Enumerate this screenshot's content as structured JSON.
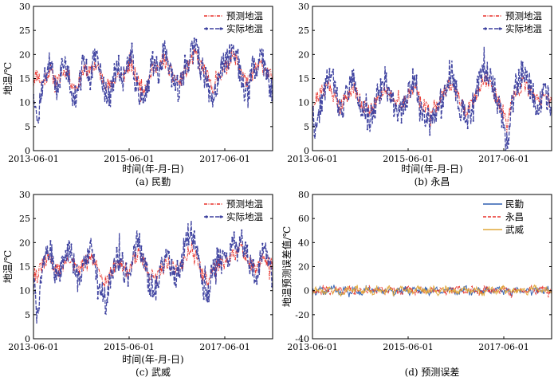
{
  "chart_data": [
    {
      "type": "line",
      "caption": "(a) 民勤",
      "xlabel": "时间(年-月-日)",
      "ylabel": "地温/℃",
      "xticks": [
        "2013-06-01",
        "2015-06-01",
        "2017-06-01"
      ],
      "x_range": [
        "2013-06-01",
        "2018-06-01"
      ],
      "yticks": [
        "0",
        "5",
        "10",
        "15",
        "20",
        "25",
        "30"
      ],
      "ylim": [
        0,
        30
      ],
      "legend_position": "top-right",
      "series": [
        {
          "name": "预测地温",
          "color": "#e8312a",
          "style": "dash-dot",
          "seed": 11,
          "values": [
            15,
            16,
            14,
            15,
            17,
            15,
            14,
            16,
            17,
            15,
            13,
            14,
            16,
            17,
            16,
            18,
            17,
            15,
            14,
            13,
            15,
            16,
            15,
            17,
            18,
            16,
            14,
            13,
            14,
            16,
            18,
            17,
            19,
            18,
            16,
            15,
            14,
            16,
            17,
            19,
            20,
            18,
            17,
            15,
            13,
            14,
            16,
            17,
            18,
            20,
            19,
            17,
            15,
            14,
            16,
            17,
            18,
            17,
            16,
            15
          ]
        },
        {
          "name": "实际地温",
          "color": "#3b3f9e",
          "style": "dash-marker",
          "seed": 12,
          "values": [
            14,
            5,
            13,
            16,
            19,
            14,
            13,
            17,
            18,
            14,
            11,
            12,
            17,
            18,
            15,
            19,
            18,
            14,
            12,
            11,
            16,
            17,
            14,
            18,
            22,
            15,
            12,
            11,
            13,
            17,
            19,
            16,
            21,
            19,
            15,
            14,
            12,
            17,
            18,
            20,
            22,
            18,
            16,
            13,
            11,
            13,
            17,
            18,
            19,
            22,
            20,
            16,
            13,
            12,
            17,
            18,
            21,
            17,
            15,
            12
          ]
        }
      ]
    },
    {
      "type": "line",
      "caption": "(b) 永昌",
      "xlabel": "时间(年-月-日)",
      "ylabel": "",
      "xticks": [
        "2013-06-01",
        "2015-06-01",
        "2017-06-01"
      ],
      "x_range": [
        "2013-06-01",
        "2018-06-01"
      ],
      "yticks": [
        "0",
        "5",
        "10",
        "15",
        "20",
        "25",
        "30"
      ],
      "ylim": [
        0,
        30
      ],
      "legend_position": "top-right",
      "series": [
        {
          "name": "预测地温",
          "color": "#e8312a",
          "style": "dash-dot",
          "seed": 21,
          "values": [
            9,
            11,
            12,
            13,
            14,
            12,
            10,
            9,
            11,
            12,
            13,
            12,
            10,
            9,
            8,
            9,
            11,
            12,
            13,
            12,
            11,
            10,
            9,
            11,
            12,
            13,
            12,
            10,
            9,
            8,
            9,
            10,
            11,
            13,
            14,
            13,
            11,
            9,
            8,
            9,
            11,
            13,
            14,
            15,
            14,
            12,
            10,
            8,
            5,
            9,
            12,
            13,
            14,
            13,
            12,
            11,
            10,
            12,
            11,
            10
          ]
        },
        {
          "name": "实际地温",
          "color": "#3b3f9e",
          "style": "dash-marker",
          "seed": 22,
          "values": [
            8,
            3,
            10,
            12,
            16,
            15,
            11,
            8,
            11,
            13,
            15,
            13,
            9,
            7,
            6,
            8,
            12,
            13,
            15,
            12,
            10,
            9,
            7,
            11,
            13,
            15,
            12,
            9,
            7,
            6,
            8,
            9,
            11,
            14,
            17,
            14,
            10,
            8,
            6,
            8,
            11,
            14,
            16,
            17,
            16,
            12,
            9,
            5,
            1,
            8,
            13,
            15,
            17,
            15,
            13,
            10,
            9,
            13,
            11,
            8
          ]
        }
      ]
    },
    {
      "type": "line",
      "caption": "(c) 武威",
      "xlabel": "时间(年-月-日)",
      "ylabel": "地温/℃",
      "xticks": [
        "2013-06-01",
        "2015-06-01",
        "2017-06-01"
      ],
      "x_range": [
        "2013-06-01",
        "2018-06-01"
      ],
      "yticks": [
        "0",
        "5",
        "10",
        "15",
        "20",
        "25",
        "30"
      ],
      "ylim": [
        0,
        30
      ],
      "legend_position": "top-right",
      "series": [
        {
          "name": "预测地温",
          "color": "#e8312a",
          "style": "dash-dot",
          "seed": 31,
          "values": [
            14,
            13,
            15,
            16,
            17,
            15,
            14,
            15,
            16,
            17,
            15,
            14,
            15,
            16,
            17,
            16,
            14,
            13,
            12,
            14,
            15,
            16,
            15,
            14,
            15,
            17,
            18,
            16,
            14,
            13,
            12,
            14,
            15,
            16,
            15,
            14,
            15,
            16,
            18,
            19,
            17,
            15,
            13,
            12,
            14,
            15,
            16,
            15,
            16,
            17,
            18,
            19,
            18,
            16,
            15,
            14,
            16,
            17,
            16,
            15
          ]
        },
        {
          "name": "实际地温",
          "color": "#3b3f9e",
          "style": "dash-marker",
          "seed": 32,
          "values": [
            13,
            3,
            14,
            17,
            19,
            15,
            13,
            15,
            17,
            19,
            15,
            12,
            15,
            17,
            19,
            16,
            12,
            10,
            7,
            13,
            16,
            17,
            15,
            13,
            15,
            19,
            21,
            16,
            13,
            11,
            10,
            13,
            16,
            17,
            15,
            13,
            15,
            17,
            21,
            23,
            18,
            15,
            11,
            9,
            13,
            16,
            17,
            15,
            16,
            19,
            20,
            21,
            19,
            16,
            14,
            13,
            16,
            19,
            16,
            13
          ]
        }
      ]
    },
    {
      "type": "line",
      "caption": "(d) 预测误差",
      "xlabel": "",
      "ylabel": "地温预测误差值/℃",
      "xticks": [
        "2013-06-01",
        "2015-06-01",
        "2017-06-01"
      ],
      "x_range": [
        "2013-06-01",
        "2018-06-01"
      ],
      "yticks": [
        "-40",
        "-20",
        "0",
        "20",
        "40",
        "60",
        "80"
      ],
      "ylim": [
        -40,
        80
      ],
      "legend_position": "top-right",
      "series": [
        {
          "name": "民勤",
          "color": "#2f5fb0",
          "style": "solid",
          "seed": 41,
          "values": [
            0,
            -2,
            2,
            -3,
            1,
            3,
            -1,
            -2,
            2,
            -4,
            1,
            0,
            -3,
            2,
            1,
            -1,
            3,
            -2,
            0,
            2,
            -3,
            1,
            -1,
            2,
            -2,
            3,
            0,
            -1,
            2,
            -3,
            1,
            2,
            -2,
            0,
            3,
            -1,
            -2,
            1,
            2,
            -3,
            0,
            1,
            -2,
            3,
            -1,
            0,
            2,
            -2,
            1,
            -3,
            2,
            0,
            -1,
            3,
            -2,
            1,
            0,
            -1,
            2,
            -2
          ]
        },
        {
          "name": "永昌",
          "color": "#e8312a",
          "style": "dashed",
          "seed": 42,
          "values": [
            1,
            -1,
            -2,
            2,
            0,
            -3,
            2,
            1,
            -1,
            3,
            -2,
            1,
            0,
            -2,
            2,
            -1,
            1,
            3,
            -3,
            0,
            2,
            -1,
            -2,
            1,
            3,
            -2,
            0,
            1,
            -3,
            2,
            0,
            -1,
            2,
            -2,
            1,
            0,
            3,
            -2,
            -1,
            2,
            1,
            -3,
            0,
            2,
            -1,
            1,
            -2,
            2,
            0,
            -4,
            1,
            2,
            -1,
            0,
            2,
            -2,
            1,
            3,
            -2,
            0
          ]
        },
        {
          "name": "武威",
          "color": "#e0a83a",
          "style": "solid",
          "seed": 43,
          "values": [
            -1,
            2,
            0,
            -2,
            3,
            -1,
            1,
            -3,
            0,
            2,
            -1,
            3,
            -2,
            0,
            1,
            -2,
            2,
            0,
            -1,
            3,
            -3,
            1,
            2,
            -1,
            0,
            -2,
            3,
            1,
            -1,
            0,
            2,
            -3,
            1,
            2,
            -1,
            0,
            -2,
            3,
            1,
            -1,
            2,
            0,
            -3,
            1,
            2,
            -1,
            0,
            3,
            -2,
            1,
            0,
            -1,
            2,
            -2,
            1,
            3,
            -1,
            0,
            2,
            -1
          ]
        }
      ]
    }
  ]
}
